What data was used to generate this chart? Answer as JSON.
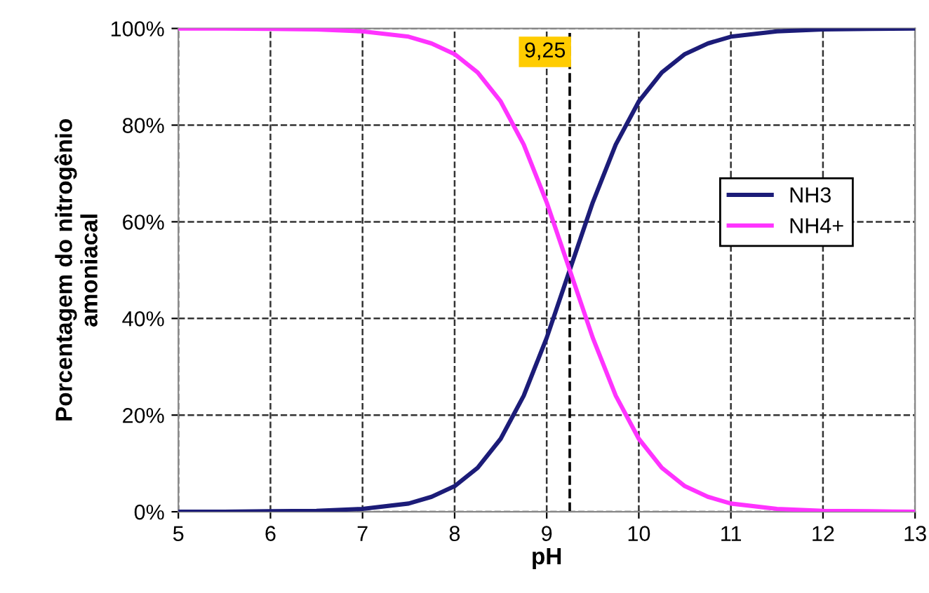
{
  "chart_data": {
    "type": "line",
    "xlabel": "pH",
    "ylabel": "Porcentagem do nitrogênio\namoniacal",
    "x": [
      5,
      5.5,
      6,
      6.5,
      7,
      7.5,
      7.75,
      8,
      8.25,
      8.5,
      8.75,
      9,
      9.25,
      9.5,
      9.75,
      10,
      10.25,
      10.5,
      10.75,
      11,
      11.5,
      12,
      12.5,
      13
    ],
    "series": [
      {
        "name": "NH3",
        "color": "#1c1c78",
        "values": [
          0,
          0,
          0.1,
          0.2,
          0.6,
          1.7,
          3.1,
          5.3,
          9.1,
          15.1,
          24.0,
          36.0,
          50,
          64.0,
          76.0,
          84.9,
          90.9,
          94.7,
          96.9,
          98.3,
          99.4,
          99.8,
          99.9,
          100
        ]
      },
      {
        "name": "NH4+",
        "color": "#ff33ff",
        "values": [
          100,
          100,
          99.9,
          99.8,
          99.4,
          98.3,
          96.9,
          94.7,
          90.9,
          84.9,
          76.0,
          64.0,
          50,
          36.0,
          24.0,
          15.1,
          9.1,
          5.3,
          3.1,
          1.7,
          0.6,
          0.2,
          0.1,
          0
        ]
      }
    ],
    "xlim": [
      5,
      13
    ],
    "xticks": [
      5,
      6,
      7,
      8,
      9,
      10,
      11,
      12,
      13
    ],
    "ylim": [
      0,
      100
    ],
    "yticks": [
      {
        "value": 0,
        "label": "0%"
      },
      {
        "value": 20,
        "label": "20%"
      },
      {
        "value": 40,
        "label": "40%"
      },
      {
        "value": 60,
        "label": "60%"
      },
      {
        "value": 80,
        "label": "80%"
      },
      {
        "value": 100,
        "label": "100%"
      }
    ],
    "ref_lines": [
      {
        "axis": "x",
        "value": 9.25,
        "label": "9,25",
        "color": "#000000",
        "line_style": "dashed"
      }
    ],
    "grid": true,
    "legend": "right",
    "marker": "none",
    "line_style": "solid"
  }
}
